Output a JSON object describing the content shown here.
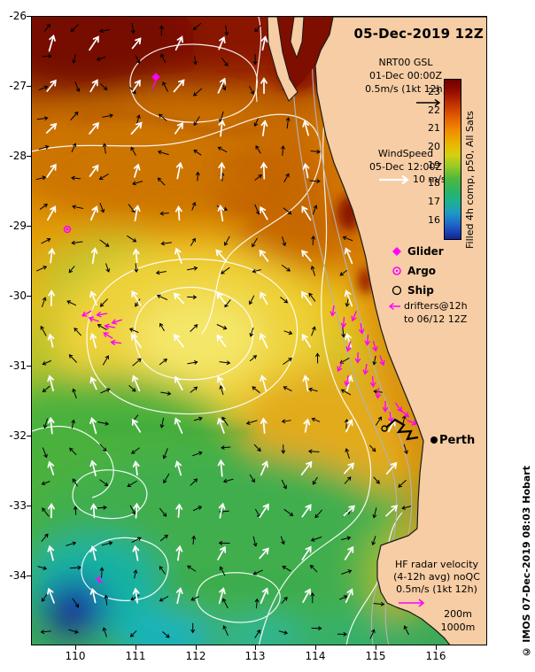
{
  "title": "05-Dec-2019 12Z",
  "colorbar": {
    "label": "Filled 4h comp, p50, All Sats",
    "ticks": [
      "23",
      "22",
      "21",
      "20",
      "19",
      "18",
      "17",
      "16"
    ]
  },
  "legend": {
    "gsl": {
      "name": "NRT00 GSL",
      "time": "01-Dec 00:00Z",
      "scale": "0.5m/s (1kt 12h)"
    },
    "wind": {
      "name": "WindSpeed",
      "time": "05-Dec 12:00Z",
      "scale": "10 m/s"
    },
    "markers": {
      "glider": "Glider",
      "argo": "Argo",
      "ship": "Ship"
    },
    "drifters": {
      "line1": "drifters@12h",
      "line2": "to 06/12 12Z"
    },
    "hf": {
      "line1": "HF radar velocity",
      "line2": "(4-12h avg) noQC",
      "line3": "0.5m/s (1kt 12h)"
    },
    "depths": {
      "d200": "200m",
      "d1000": "1000m"
    }
  },
  "city": {
    "label": "Perth"
  },
  "axes": {
    "lat": [
      "-26",
      "-27",
      "-28",
      "-29",
      "-30",
      "-31",
      "-32",
      "-33",
      "-34"
    ],
    "lon": [
      "110",
      "111",
      "112",
      "113",
      "114",
      "115",
      "116"
    ]
  },
  "credit": "© IMOS 07-Dec-2019 08:03 Hobart",
  "colors": {
    "magenta": "#ff00ff",
    "land": "#f6cda4",
    "sst_hot": "#7e0e00",
    "sst_cold": "#14239a",
    "contour": "#ffffff",
    "bathymetry": "#b3b3b3"
  }
}
